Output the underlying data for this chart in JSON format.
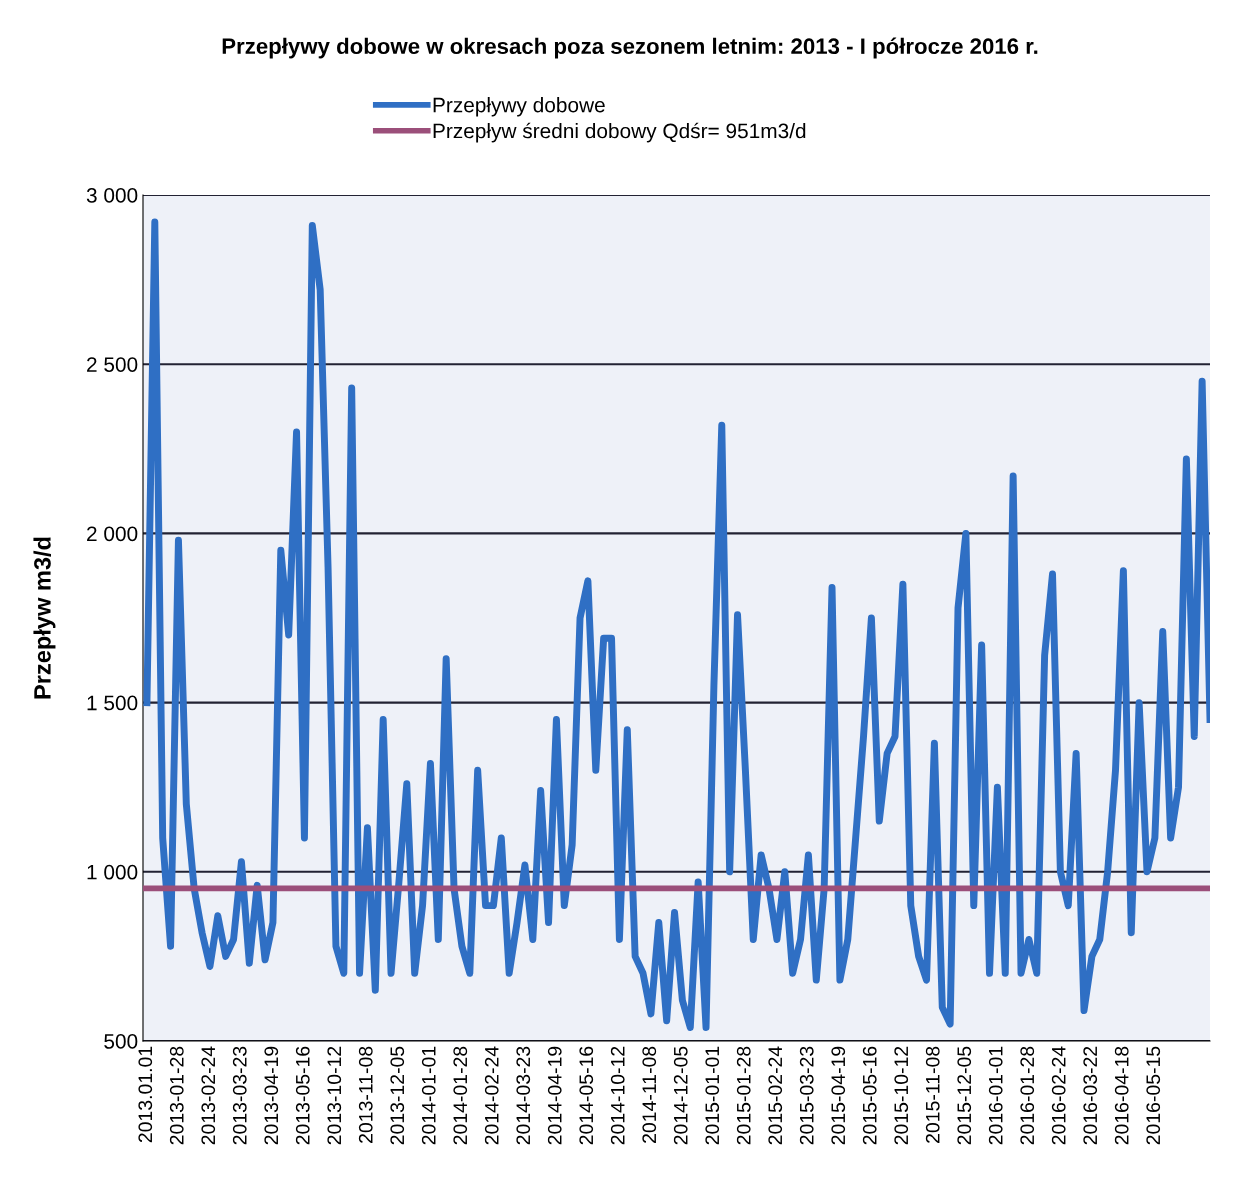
{
  "chart_data": {
    "type": "line",
    "title": "Przepływy dobowe w okresach poza sezonem letnim: 2013 - I półrocze 2016 r.",
    "ylabel": "Przepływ m3/d",
    "categories": [
      "2013.01.01",
      null,
      null,
      null,
      "2013-01-28",
      null,
      null,
      null,
      "2013-02-24",
      null,
      null,
      null,
      "2013-03-23",
      null,
      null,
      null,
      "2013-04-19",
      null,
      null,
      null,
      "2013-05-16",
      null,
      null,
      null,
      "2013-10-12",
      null,
      null,
      null,
      "2013-11-08",
      null,
      null,
      null,
      "2013-12-05",
      null,
      null,
      null,
      "2014-01-01",
      null,
      null,
      null,
      "2014-01-28",
      null,
      null,
      null,
      "2014-02-24",
      null,
      null,
      null,
      "2014-03-23",
      null,
      null,
      null,
      "2014-04-19",
      null,
      null,
      null,
      "2014-05-16",
      null,
      null,
      null,
      "2014-10-12",
      null,
      null,
      null,
      "2014-11-08",
      null,
      null,
      null,
      "2014-12-05",
      null,
      null,
      null,
      "2015-01-01",
      null,
      null,
      null,
      "2015-01-28",
      null,
      null,
      null,
      "2015-02-24",
      null,
      null,
      null,
      "2015-03-23",
      null,
      null,
      null,
      "2015-04-19",
      null,
      null,
      null,
      "2015-05-16",
      null,
      null,
      null,
      "2015-10-12",
      null,
      null,
      null,
      "2015-11-08",
      null,
      null,
      null,
      "2015-12-05",
      null,
      null,
      null,
      "2016-01-01",
      null,
      null,
      null,
      "2016-01-28",
      null,
      null,
      null,
      "2016-02-24",
      null,
      null,
      null,
      "2016-03-22",
      null,
      null,
      null,
      "2016-04-18",
      null,
      null,
      null,
      "2016-05-15",
      null,
      null,
      null,
      null,
      null,
      null,
      null
    ],
    "series": [
      {
        "name": "Przepływy dobowe",
        "color": "#2f6fc4",
        "values": [
          1500,
          2920,
          1100,
          780,
          1980,
          1200,
          950,
          820,
          720,
          870,
          750,
          800,
          1030,
          730,
          960,
          740,
          850,
          1950,
          1700,
          2300,
          1100,
          2910,
          2720,
          1900,
          780,
          700,
          2430,
          700,
          1130,
          650,
          1450,
          700,
          970,
          1260,
          700,
          900,
          1320,
          800,
          1630,
          950,
          780,
          700,
          1300,
          900,
          900,
          1100,
          700,
          850,
          1020,
          800,
          1240,
          850,
          1450,
          900,
          1080,
          1750,
          1860,
          1300,
          1690,
          1690,
          800,
          1420,
          750,
          700,
          580,
          850,
          560,
          880,
          620,
          540,
          970,
          540,
          1550,
          2320,
          1000,
          1760,
          1300,
          800,
          1050,
          950,
          800,
          1000,
          700,
          800,
          1050,
          680,
          950,
          1840,
          680,
          800,
          1100,
          1400,
          1750,
          1150,
          1350,
          1400,
          1850,
          900,
          750,
          680,
          1380,
          600,
          550,
          1780,
          2000,
          900,
          1670,
          700,
          1250,
          700,
          2170,
          700,
          800,
          700,
          1640,
          1880,
          1000,
          900,
          1350,
          590,
          750,
          800,
          1000,
          1300,
          1890,
          820,
          1500,
          1000,
          1100,
          1710,
          1100,
          1250,
          2220,
          1400,
          2450,
          1450
        ]
      }
    ],
    "ref_lines": [
      {
        "axis": "y",
        "value": 951,
        "label": "Przepływ średni dobowy Qdśr= 951m3/d",
        "color": "#9b4f7a"
      }
    ],
    "ylim": [
      500,
      3000
    ],
    "yticks": [
      500,
      {
        "value": 1000,
        "label": "1 000"
      },
      {
        "value": 1500,
        "label": "1 500"
      },
      {
        "value": 2000,
        "label": "2 000"
      },
      {
        "value": 2500,
        "label": "2 500"
      },
      {
        "value": 3000,
        "label": "3 000"
      }
    ],
    "grid": "y",
    "legend": "top",
    "line_style": "solid",
    "marker": "none"
  }
}
